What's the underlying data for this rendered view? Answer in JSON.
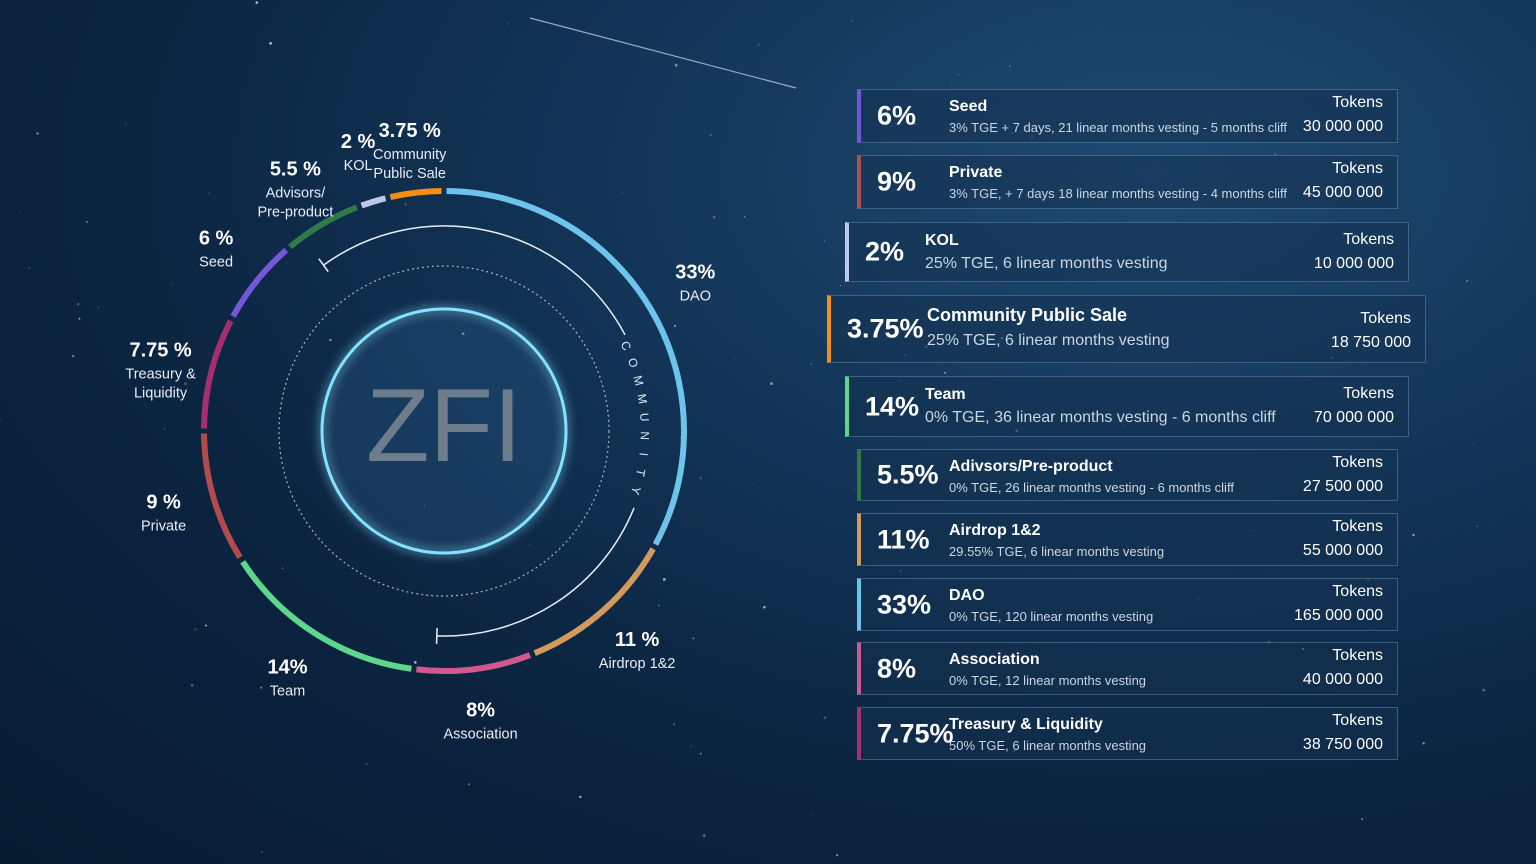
{
  "center_label": "ZFI",
  "community_label": "COMMUNITY",
  "tokens_label": "Tokens",
  "chart_data": {
    "type": "pie",
    "title": "",
    "slices": [
      {
        "label": "DAO",
        "value": 33,
        "display_pct": "33%",
        "color": "#6dc3ec"
      },
      {
        "label": "Airdrop 1&2",
        "value": 11,
        "display_pct": "11 %",
        "color": "#d39a5e"
      },
      {
        "label": "Association",
        "value": 8,
        "display_pct": "8%",
        "color": "#d0578f"
      },
      {
        "label": "Team",
        "value": 14,
        "display_pct": "14%",
        "color": "#5fd68d"
      },
      {
        "label": "Private",
        "value": 9,
        "display_pct": "9 %",
        "color": "#b24b4b"
      },
      {
        "label": "Treasury & Liquidity",
        "value": 7.75,
        "display_pct": "7.75 %",
        "color": "#a52f6d"
      },
      {
        "label": "Seed",
        "value": 6,
        "display_pct": "6 %",
        "color": "#7456d8"
      },
      {
        "label": "Advisors/ Pre-product",
        "value": 5.5,
        "display_pct": "5.5 %",
        "color": "#2f7a47"
      },
      {
        "label": "KOL",
        "value": 2,
        "display_pct": "2 %",
        "color": "#b9c9e6"
      },
      {
        "label": "Community Public Sale",
        "value": 3.75,
        "display_pct": "3.75 %",
        "color": "#f48d14"
      }
    ]
  },
  "donut_labels": [
    {
      "pct": "33%",
      "lines": [
        "DAO"
      ]
    },
    {
      "pct": "11 %",
      "lines": [
        "Airdrop 1&2"
      ]
    },
    {
      "pct": "8%",
      "lines": [
        "Association"
      ]
    },
    {
      "pct": "14%",
      "lines": [
        "Team"
      ]
    },
    {
      "pct": "9 %",
      "lines": [
        "Private"
      ]
    },
    {
      "pct": "7.75 %",
      "lines": [
        "Treasury &",
        "Liquidity"
      ]
    },
    {
      "pct": "6 %",
      "lines": [
        "Seed"
      ]
    },
    {
      "pct": "5.5 %",
      "lines": [
        "Advisors/",
        "Pre-product"
      ]
    },
    {
      "pct": "2 %",
      "lines": [
        "KOL"
      ]
    },
    {
      "pct": "3.75 %",
      "lines": [
        "Community",
        "Public Sale"
      ]
    }
  ],
  "allocations": [
    {
      "pct": "6%",
      "name": "Seed",
      "desc": "3% TGE + 7 days, 21 linear months vesting - 5 months cliff",
      "tokens": "30 000 000",
      "color": "#7456d8"
    },
    {
      "pct": "9%",
      "name": "Private",
      "desc": "3% TGE, + 7 days  18 linear months vesting - 4 months cliff",
      "tokens": "45 000 000",
      "color": "#b24b4b"
    },
    {
      "pct": "2%",
      "name": "KOL",
      "desc": "25% TGE, 6 linear months vesting",
      "tokens": "10 000 000",
      "color": "#b9c9e6"
    },
    {
      "pct": "3.75%",
      "name": "Community Public Sale",
      "desc": "25% TGE, 6 linear months vesting",
      "tokens": "18 750 000",
      "color": "#f48d14"
    },
    {
      "pct": "14%",
      "name": "Team",
      "desc": "0% TGE, 36 linear months vesting - 6 months cliff",
      "tokens": "70 000 000",
      "color": "#5fd68d"
    },
    {
      "pct": "5.5%",
      "name": "Adivsors/Pre-product",
      "desc": "0% TGE, 26 linear months vesting - 6 months cliff",
      "tokens": "27 500 000",
      "color": "#2f7a47"
    },
    {
      "pct": "11%",
      "name": "Airdrop 1&2",
      "desc": "29.55% TGE, 6 linear months vesting",
      "tokens": "55 000 000",
      "color": "#d39a5e"
    },
    {
      "pct": "33%",
      "name": "DAO",
      "desc": "0% TGE, 120 linear months vesting",
      "tokens": "165 000 000",
      "color": "#6dc3ec"
    },
    {
      "pct": "8%",
      "name": "Association",
      "desc": "0% TGE, 12 linear months vesting",
      "tokens": "40 000 000",
      "color": "#d0578f"
    },
    {
      "pct": "7.75%",
      "name": "Treasury & Liquidity",
      "desc": "50% TGE, 6 linear months vesting",
      "tokens": "38 750 000",
      "color": "#a52f6d"
    }
  ]
}
